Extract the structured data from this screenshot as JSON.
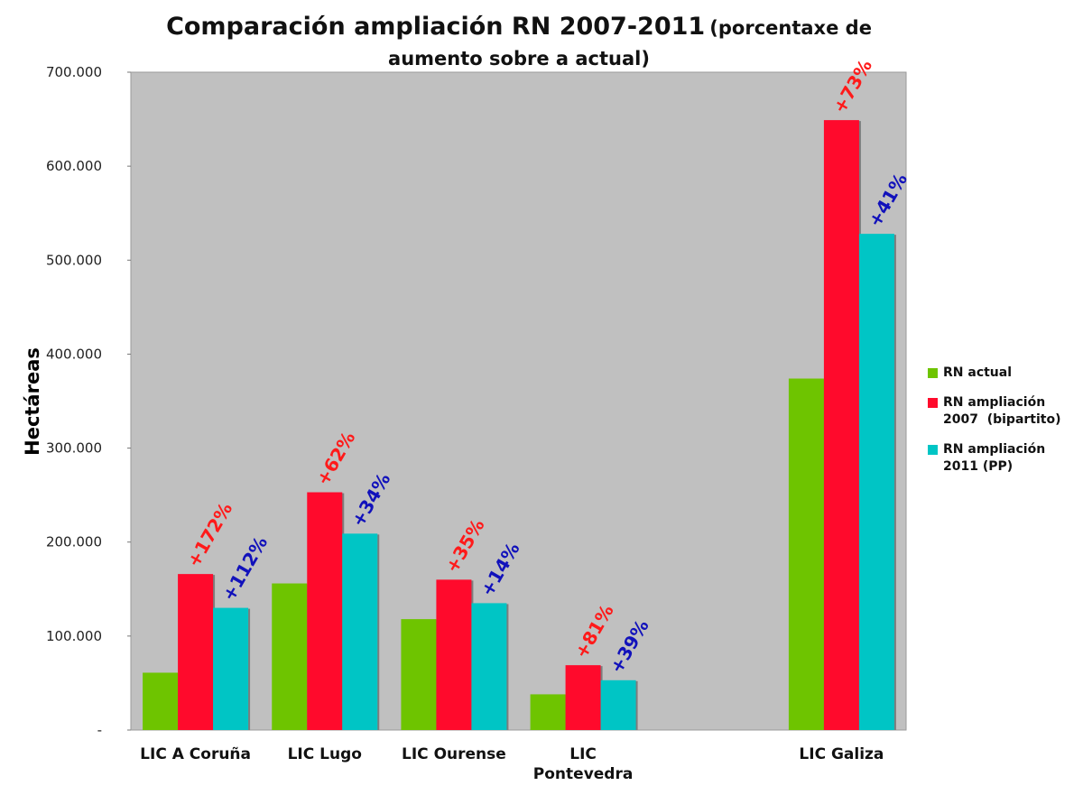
{
  "chart_data": {
    "type": "bar",
    "title": "Comparación ampliación RN 2007-2011",
    "subtitle": "(porcentaxe de aumento sobre a actual)",
    "ylabel": "Hectáreas",
    "xlabel": "",
    "ylim": [
      0,
      700000
    ],
    "yticks": [
      0,
      100000,
      200000,
      300000,
      400000,
      500000,
      600000,
      700000
    ],
    "ytick_labels": [
      "-",
      "100.000",
      "200.000",
      "300.000",
      "400.000",
      "500.000",
      "600.000",
      "700.000"
    ],
    "categories": [
      {
        "lines": [
          "LIC A Coruña"
        ]
      },
      {
        "lines": [
          "LIC Lugo"
        ]
      },
      {
        "lines": [
          "LIC Ourense"
        ]
      },
      {
        "lines": [
          "LIC",
          "Pontevedra"
        ]
      },
      {
        "lines": [
          ""
        ]
      },
      {
        "lines": [
          "LIC Galiza"
        ]
      }
    ],
    "series": [
      {
        "name": "RN actual",
        "legend_lines": [
          "RN actual"
        ],
        "color": "#6ec400",
        "values": [
          61000,
          156000,
          118000,
          38000,
          null,
          374000
        ],
        "labels": [
          "",
          "",
          "",
          "",
          "",
          ""
        ],
        "label_color": "#000000"
      },
      {
        "name": "RN ampliación 2007 (bipartito)",
        "legend_lines": [
          "RN ampliación",
          "2007  (bipartito)"
        ],
        "color": "#ff0a2c",
        "values": [
          166000,
          253000,
          160000,
          69000,
          null,
          649000
        ],
        "labels": [
          "+172%",
          "+62%",
          "+35%",
          "+81%",
          "",
          "+73%"
        ],
        "label_color": "#ff1a1a"
      },
      {
        "name": "RN ampliación 2011 (PP)",
        "legend_lines": [
          "RN ampliación",
          "2011 (PP)"
        ],
        "color": "#00c5c5",
        "values": [
          130000,
          209000,
          135000,
          53000,
          null,
          528000
        ],
        "labels": [
          "+112%",
          "+34%",
          "+14%",
          "+39%",
          "",
          "+41%"
        ],
        "label_color": "#1111bb"
      }
    ],
    "legend_position": "right",
    "grid": false,
    "plot_background": "#c0c0c0"
  }
}
